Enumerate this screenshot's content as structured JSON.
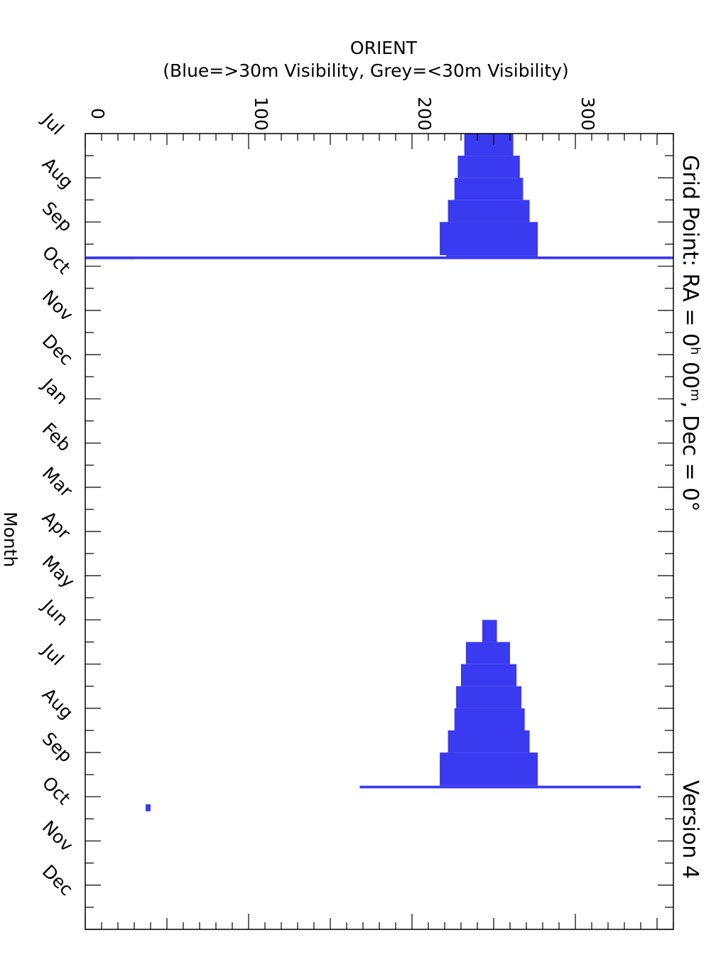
{
  "chart_data": {
    "type": "bar",
    "orientation": "rotated-90",
    "title": "ORIENT",
    "subtitle": "(Blue=>30m Visibility, Grey=<30m Visibility)",
    "side_title": "Grid Point: RA = 0h 00m, Dec = 0°",
    "side_title_parts": {
      "pre": "Grid Point: RA = 0",
      "h": "h",
      "mid": " 00",
      "m": "m",
      "post": ", Dec = 0°"
    },
    "version": "Version 4",
    "value_axis": {
      "ticks": [
        0,
        100,
        200,
        300
      ],
      "ticklabels": [
        "0",
        "100",
        "200",
        "300"
      ],
      "range": [
        0,
        360
      ]
    },
    "time_axis": {
      "label": "Month",
      "months": [
        "Jul",
        "Aug",
        "Sep",
        "Oct",
        "Nov",
        "Dec",
        "Jan",
        "Feb",
        "Mar",
        "Apr",
        "May",
        "Jun",
        "Jul",
        "Aug",
        "Sep",
        "Oct",
        "Nov",
        "Dec"
      ],
      "range_months": [
        0,
        18
      ]
    },
    "series": [
      {
        "name": ">30m Visibility",
        "color": "#3a3af0",
        "segments": [
          {
            "t0": 0.0,
            "t1": 0.5,
            "lo": 232,
            "hi": 262
          },
          {
            "t0": 0.5,
            "t1": 1.0,
            "lo": 228,
            "hi": 266
          },
          {
            "t0": 1.0,
            "t1": 1.5,
            "lo": 226,
            "hi": 268
          },
          {
            "t0": 1.5,
            "t1": 2.0,
            "lo": 222,
            "hi": 272
          },
          {
            "t0": 2.0,
            "t1": 2.75,
            "lo": 217,
            "hi": 277
          },
          {
            "t0": 2.75,
            "t1": 2.8,
            "lo": 221,
            "hi": 277
          },
          {
            "t0": 2.78,
            "t1": 2.84,
            "lo": 0,
            "hi": 360
          },
          {
            "t0": 2.78,
            "t1": 2.84,
            "lo": 0,
            "hi": 30
          },
          {
            "t0": 11.0,
            "t1": 11.5,
            "lo": 243,
            "hi": 252
          },
          {
            "t0": 11.5,
            "t1": 12.0,
            "lo": 233,
            "hi": 260
          },
          {
            "t0": 12.0,
            "t1": 12.5,
            "lo": 230,
            "hi": 264
          },
          {
            "t0": 12.5,
            "t1": 13.0,
            "lo": 227,
            "hi": 267
          },
          {
            "t0": 13.0,
            "t1": 13.5,
            "lo": 226,
            "hi": 269
          },
          {
            "t0": 13.5,
            "t1": 14.0,
            "lo": 222,
            "hi": 272
          },
          {
            "t0": 14.0,
            "t1": 14.75,
            "lo": 217,
            "hi": 277
          },
          {
            "t0": 14.75,
            "t1": 14.81,
            "lo": 168,
            "hi": 340
          },
          {
            "t0": 15.17,
            "t1": 15.33,
            "lo": 37,
            "hi": 40
          }
        ]
      },
      {
        "name": "<30m Visibility",
        "color": "#9a9a9a",
        "segments": []
      }
    ]
  }
}
